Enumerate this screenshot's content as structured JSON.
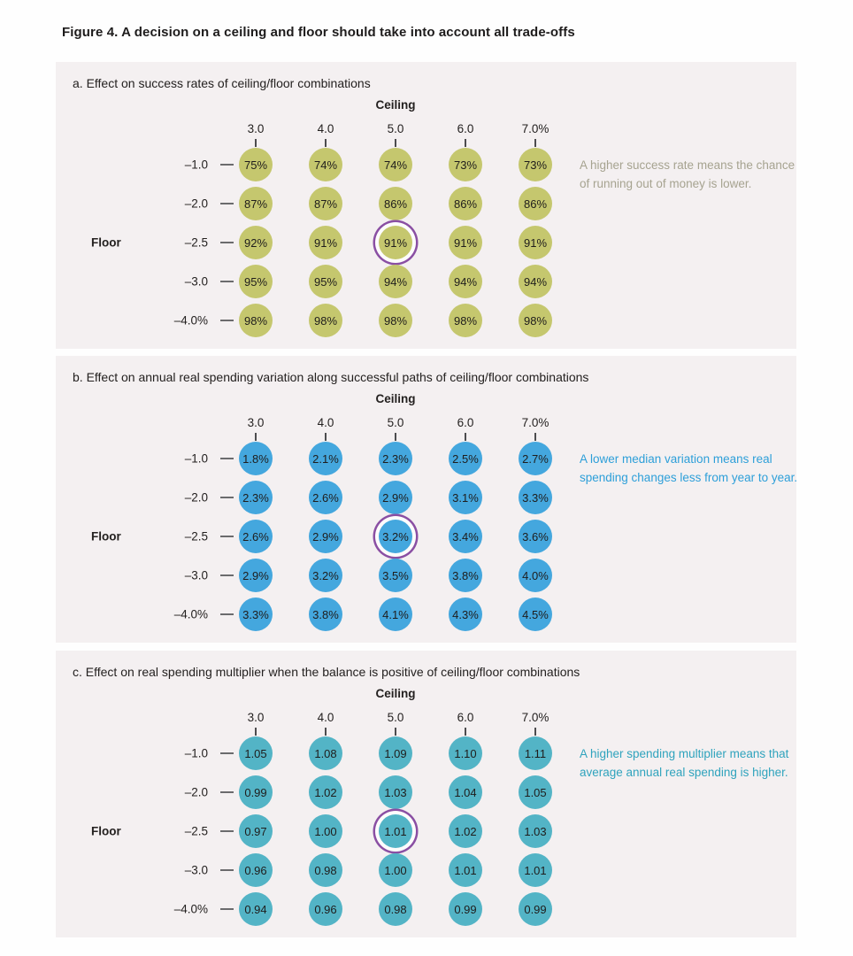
{
  "figure_title": "Figure 4. A decision on a ceiling and floor should take into account all trade-offs",
  "axes": {
    "ceiling_label": "Ceiling",
    "floor_label": "Floor",
    "ceiling_ticks": [
      "3.0",
      "4.0",
      "5.0",
      "6.0",
      "7.0%"
    ],
    "floor_ticks": [
      "–1.0",
      "–2.0",
      "–2.5",
      "–3.0",
      "–4.0%"
    ]
  },
  "styles": {
    "panel_bg": "#f4f0f1",
    "highlight_ring_color": "#8a4fa3",
    "panel_a_circle_color": "#c5c76e",
    "panel_b_circle_color": "#44a7de",
    "panel_c_circle_color": "#53b4c6"
  },
  "panels": [
    {
      "id": "a",
      "title": "a. Effect on success rates of ceiling/floor combinations",
      "note": "A higher success rate means the chance of running out of money is lower.",
      "circle_color": "#c5c76e",
      "note_color": "#a6a390",
      "values": [
        [
          "75%",
          "74%",
          "74%",
          "73%",
          "73%"
        ],
        [
          "87%",
          "87%",
          "86%",
          "86%",
          "86%"
        ],
        [
          "92%",
          "91%",
          "91%",
          "91%",
          "91%"
        ],
        [
          "95%",
          "95%",
          "94%",
          "94%",
          "94%"
        ],
        [
          "98%",
          "98%",
          "98%",
          "98%",
          "98%"
        ]
      ],
      "highlight": {
        "row": 2,
        "col": 2
      }
    },
    {
      "id": "b",
      "title": "b. Effect on annual real spending variation along successful paths of ceiling/floor combinations",
      "note": "A lower median variation means real spending changes less from year to year.",
      "circle_color": "#44a7de",
      "note_color": "#2d9fd9",
      "values": [
        [
          "1.8%",
          "2.1%",
          "2.3%",
          "2.5%",
          "2.7%"
        ],
        [
          "2.3%",
          "2.6%",
          "2.9%",
          "3.1%",
          "3.3%"
        ],
        [
          "2.6%",
          "2.9%",
          "3.2%",
          "3.4%",
          "3.6%"
        ],
        [
          "2.9%",
          "3.2%",
          "3.5%",
          "3.8%",
          "4.0%"
        ],
        [
          "3.3%",
          "3.8%",
          "4.1%",
          "4.3%",
          "4.5%"
        ]
      ],
      "highlight": {
        "row": 2,
        "col": 2
      }
    },
    {
      "id": "c",
      "title": "c. Effect on real spending multiplier when the balance is positive of ceiling/floor combinations",
      "note": "A higher spending multiplier means that average annual real spending is higher.",
      "circle_color": "#53b4c6",
      "note_color": "#2fa3bd",
      "values": [
        [
          "1.05",
          "1.08",
          "1.09",
          "1.10",
          "1.11"
        ],
        [
          "0.99",
          "1.02",
          "1.03",
          "1.04",
          "1.05"
        ],
        [
          "0.97",
          "1.00",
          "1.01",
          "1.02",
          "1.03"
        ],
        [
          "0.96",
          "0.98",
          "1.00",
          "1.01",
          "1.01"
        ],
        [
          "0.94",
          "0.96",
          "0.98",
          "0.99",
          "0.99"
        ]
      ],
      "highlight": {
        "row": 2,
        "col": 2
      }
    }
  ],
  "chart_data": [
    {
      "type": "heatmap",
      "title": "a. Effect on success rates of ceiling/floor combinations",
      "xlabel": "Ceiling",
      "ylabel": "Floor",
      "x": [
        "3.0",
        "4.0",
        "5.0",
        "6.0",
        "7.0%"
      ],
      "y": [
        "-1.0",
        "-2.0",
        "-2.5",
        "-3.0",
        "-4.0%"
      ],
      "values": [
        [
          75,
          74,
          74,
          73,
          73
        ],
        [
          87,
          87,
          86,
          86,
          86
        ],
        [
          92,
          91,
          91,
          91,
          91
        ],
        [
          95,
          95,
          94,
          94,
          94
        ],
        [
          98,
          98,
          98,
          98,
          98
        ]
      ],
      "units": "%",
      "highlighted_cell": {
        "floor": "-2.5",
        "ceiling": "5.0",
        "value": 91
      },
      "annotation": "A higher success rate means the chance of running out of money is lower.",
      "legend_position": "right"
    },
    {
      "type": "heatmap",
      "title": "b. Effect on annual real spending variation along successful paths of ceiling/floor combinations",
      "xlabel": "Ceiling",
      "ylabel": "Floor",
      "x": [
        "3.0",
        "4.0",
        "5.0",
        "6.0",
        "7.0%"
      ],
      "y": [
        "-1.0",
        "-2.0",
        "-2.5",
        "-3.0",
        "-4.0%"
      ],
      "values": [
        [
          1.8,
          2.1,
          2.3,
          2.5,
          2.7
        ],
        [
          2.3,
          2.6,
          2.9,
          3.1,
          3.3
        ],
        [
          2.6,
          2.9,
          3.2,
          3.4,
          3.6
        ],
        [
          2.9,
          3.2,
          3.5,
          3.8,
          4.0
        ],
        [
          3.3,
          3.8,
          4.1,
          4.3,
          4.5
        ]
      ],
      "units": "%",
      "highlighted_cell": {
        "floor": "-2.5",
        "ceiling": "5.0",
        "value": 3.2
      },
      "annotation": "A lower median variation means real spending changes less from year to year.",
      "legend_position": "right"
    },
    {
      "type": "heatmap",
      "title": "c. Effect on real spending multiplier when the balance is positive of ceiling/floor combinations",
      "xlabel": "Ceiling",
      "ylabel": "Floor",
      "x": [
        "3.0",
        "4.0",
        "5.0",
        "6.0",
        "7.0%"
      ],
      "y": [
        "-1.0",
        "-2.0",
        "-2.5",
        "-3.0",
        "-4.0%"
      ],
      "values": [
        [
          1.05,
          1.08,
          1.09,
          1.1,
          1.11
        ],
        [
          0.99,
          1.02,
          1.03,
          1.04,
          1.05
        ],
        [
          0.97,
          1.0,
          1.01,
          1.02,
          1.03
        ],
        [
          0.96,
          0.98,
          1.0,
          1.01,
          1.01
        ],
        [
          0.94,
          0.96,
          0.98,
          0.99,
          0.99
        ]
      ],
      "units": "",
      "highlighted_cell": {
        "floor": "-2.5",
        "ceiling": "5.0",
        "value": 1.01
      },
      "annotation": "A higher spending multiplier means that average annual real spending is higher.",
      "legend_position": "right"
    }
  ]
}
